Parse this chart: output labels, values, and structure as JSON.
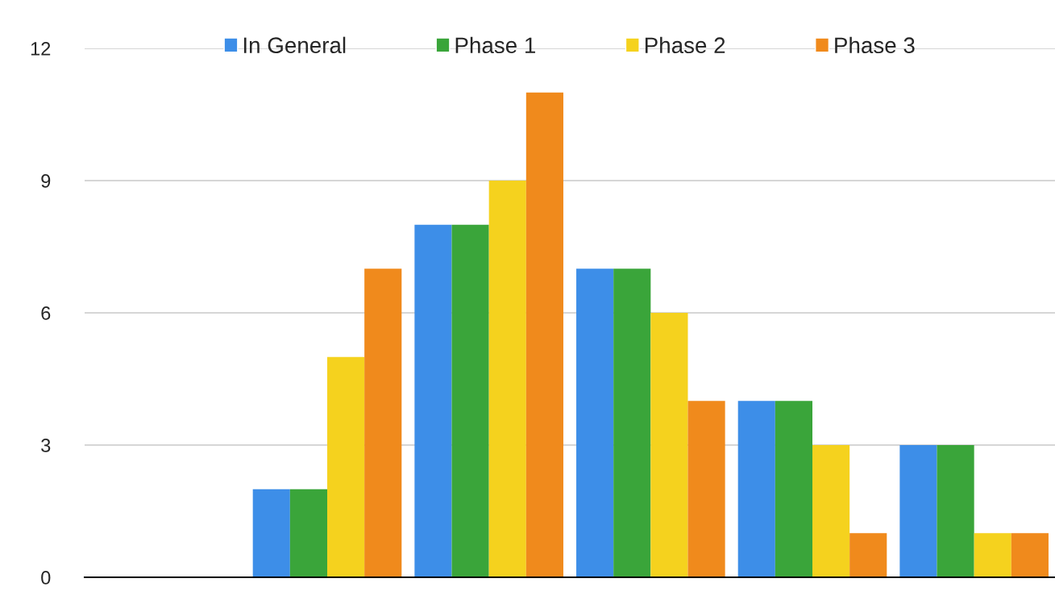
{
  "chart_data": {
    "type": "bar",
    "categories": [
      null,
      null,
      null,
      null,
      null,
      null
    ],
    "series": [
      {
        "name": "In General",
        "color": "#3d8ee8",
        "values": [
          0,
          2,
          8,
          7,
          4,
          3
        ]
      },
      {
        "name": "Phase 1",
        "color": "#3aa53a",
        "values": [
          0,
          2,
          8,
          7,
          4,
          3
        ]
      },
      {
        "name": "Phase 2",
        "color": "#f5d21e",
        "values": [
          0,
          5,
          9,
          6,
          3,
          1
        ]
      },
      {
        "name": "Phase 3",
        "color": "#f08a1c",
        "values": [
          0,
          7,
          11,
          4,
          1,
          1
        ]
      }
    ],
    "ylim": [
      0,
      12
    ],
    "yticks": [
      0,
      3,
      6,
      9,
      12
    ],
    "grid": "y",
    "legend": "top",
    "tick_labels": "y"
  }
}
